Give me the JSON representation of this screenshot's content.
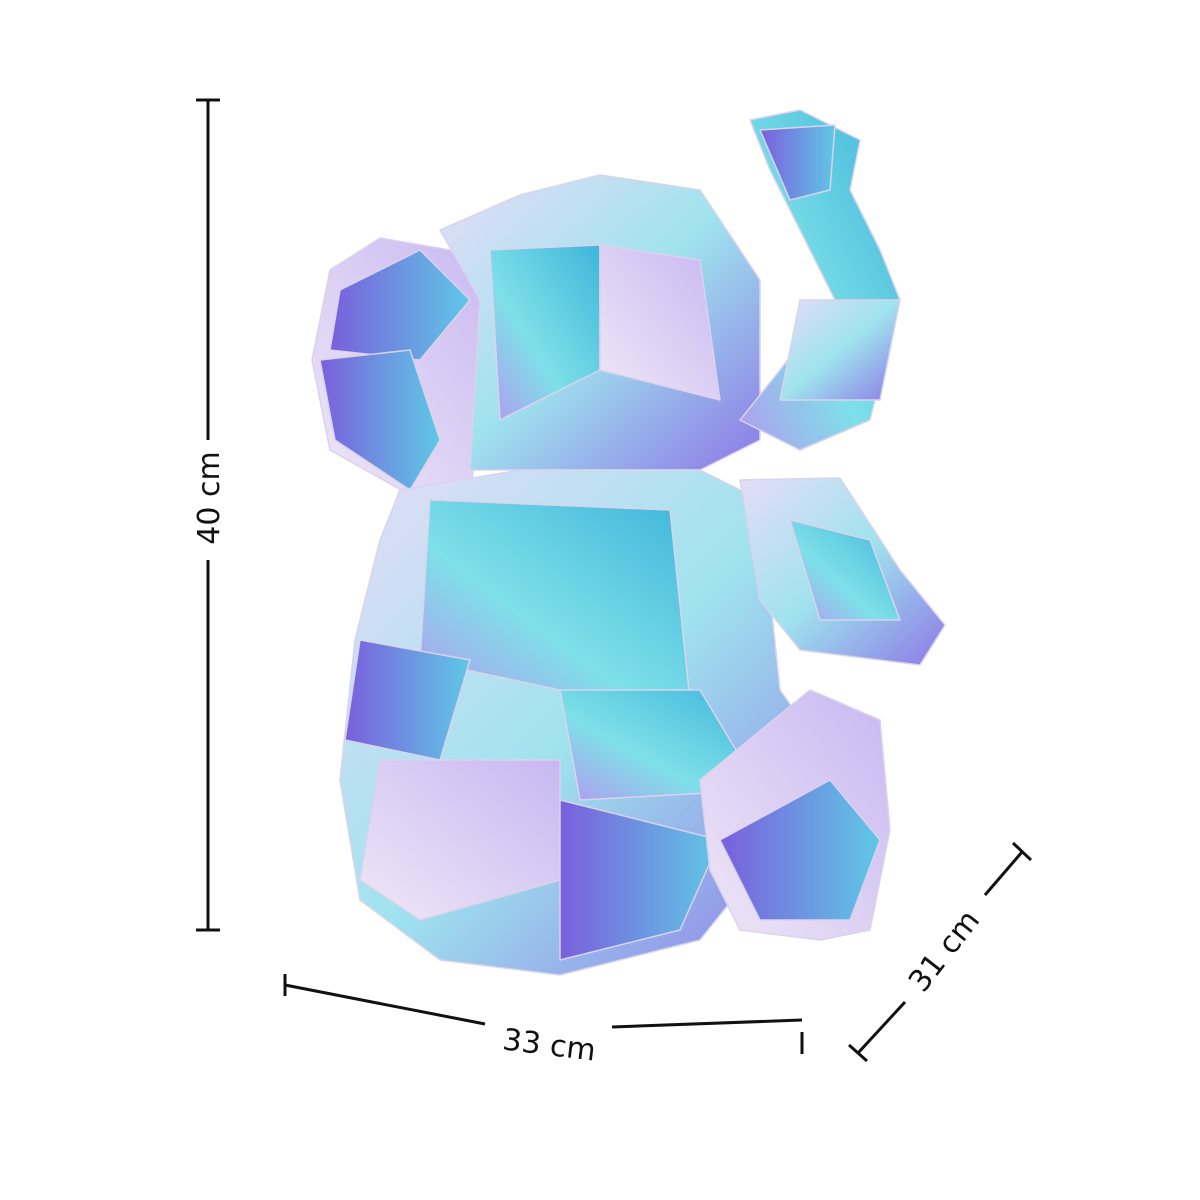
{
  "product": {
    "description_visible": "iridescent polygonal elephant light figure",
    "palette": [
      "#b9a8f0",
      "#6fd6e8",
      "#3fb7d9",
      "#8a6fe0",
      "#f2e6c9",
      "#e9d6f5",
      "#c8f0f4"
    ]
  },
  "dimensions": {
    "height": "40 cm",
    "width": "33 cm",
    "depth": "31 cm"
  },
  "line_color": "#111111"
}
